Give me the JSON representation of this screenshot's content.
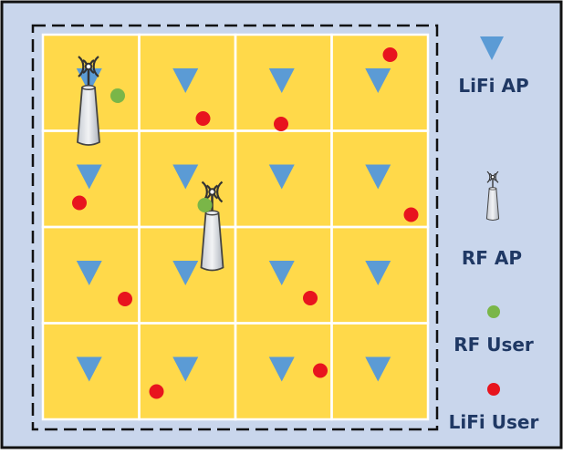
{
  "legend": {
    "lifi_ap_label": "LiFi AP",
    "rf_ap_label": "RF AP",
    "rf_user_label": "RF User",
    "lifi_user_label": "LiFi User"
  },
  "grid": {
    "rows": 4,
    "cols": 4
  },
  "colors": {
    "panel_bg": "#c9d6ec",
    "room_fill": "#ffd94a",
    "lifi_ap": "#5b9bd5",
    "rf_user": "#7ab648",
    "lifi_user": "#e8141e",
    "text": "#1f3864"
  },
  "icons": {
    "lifi_ap": "triangle-down-icon",
    "rf_ap": "antenna-tower-icon",
    "rf_user": "green-dot-icon",
    "lifi_user": "red-dot-icon"
  },
  "rf_ap_cells": [
    {
      "row": 0,
      "col": 0
    },
    {
      "row": 1,
      "col": 1
    }
  ],
  "rf_user_cells": [
    {
      "row": 0,
      "col": 0
    },
    {
      "row": 1,
      "col": 1
    }
  ],
  "lifi_user_cells": [
    {
      "row": 0,
      "col": 1
    },
    {
      "row": 0,
      "col": 2
    },
    {
      "row": 0,
      "col": 3
    },
    {
      "row": 1,
      "col": 0
    },
    {
      "row": 1,
      "col": 3
    },
    {
      "row": 2,
      "col": 0
    },
    {
      "row": 2,
      "col": 2
    },
    {
      "row": 3,
      "col": 1
    },
    {
      "row": 3,
      "col": 2
    }
  ]
}
